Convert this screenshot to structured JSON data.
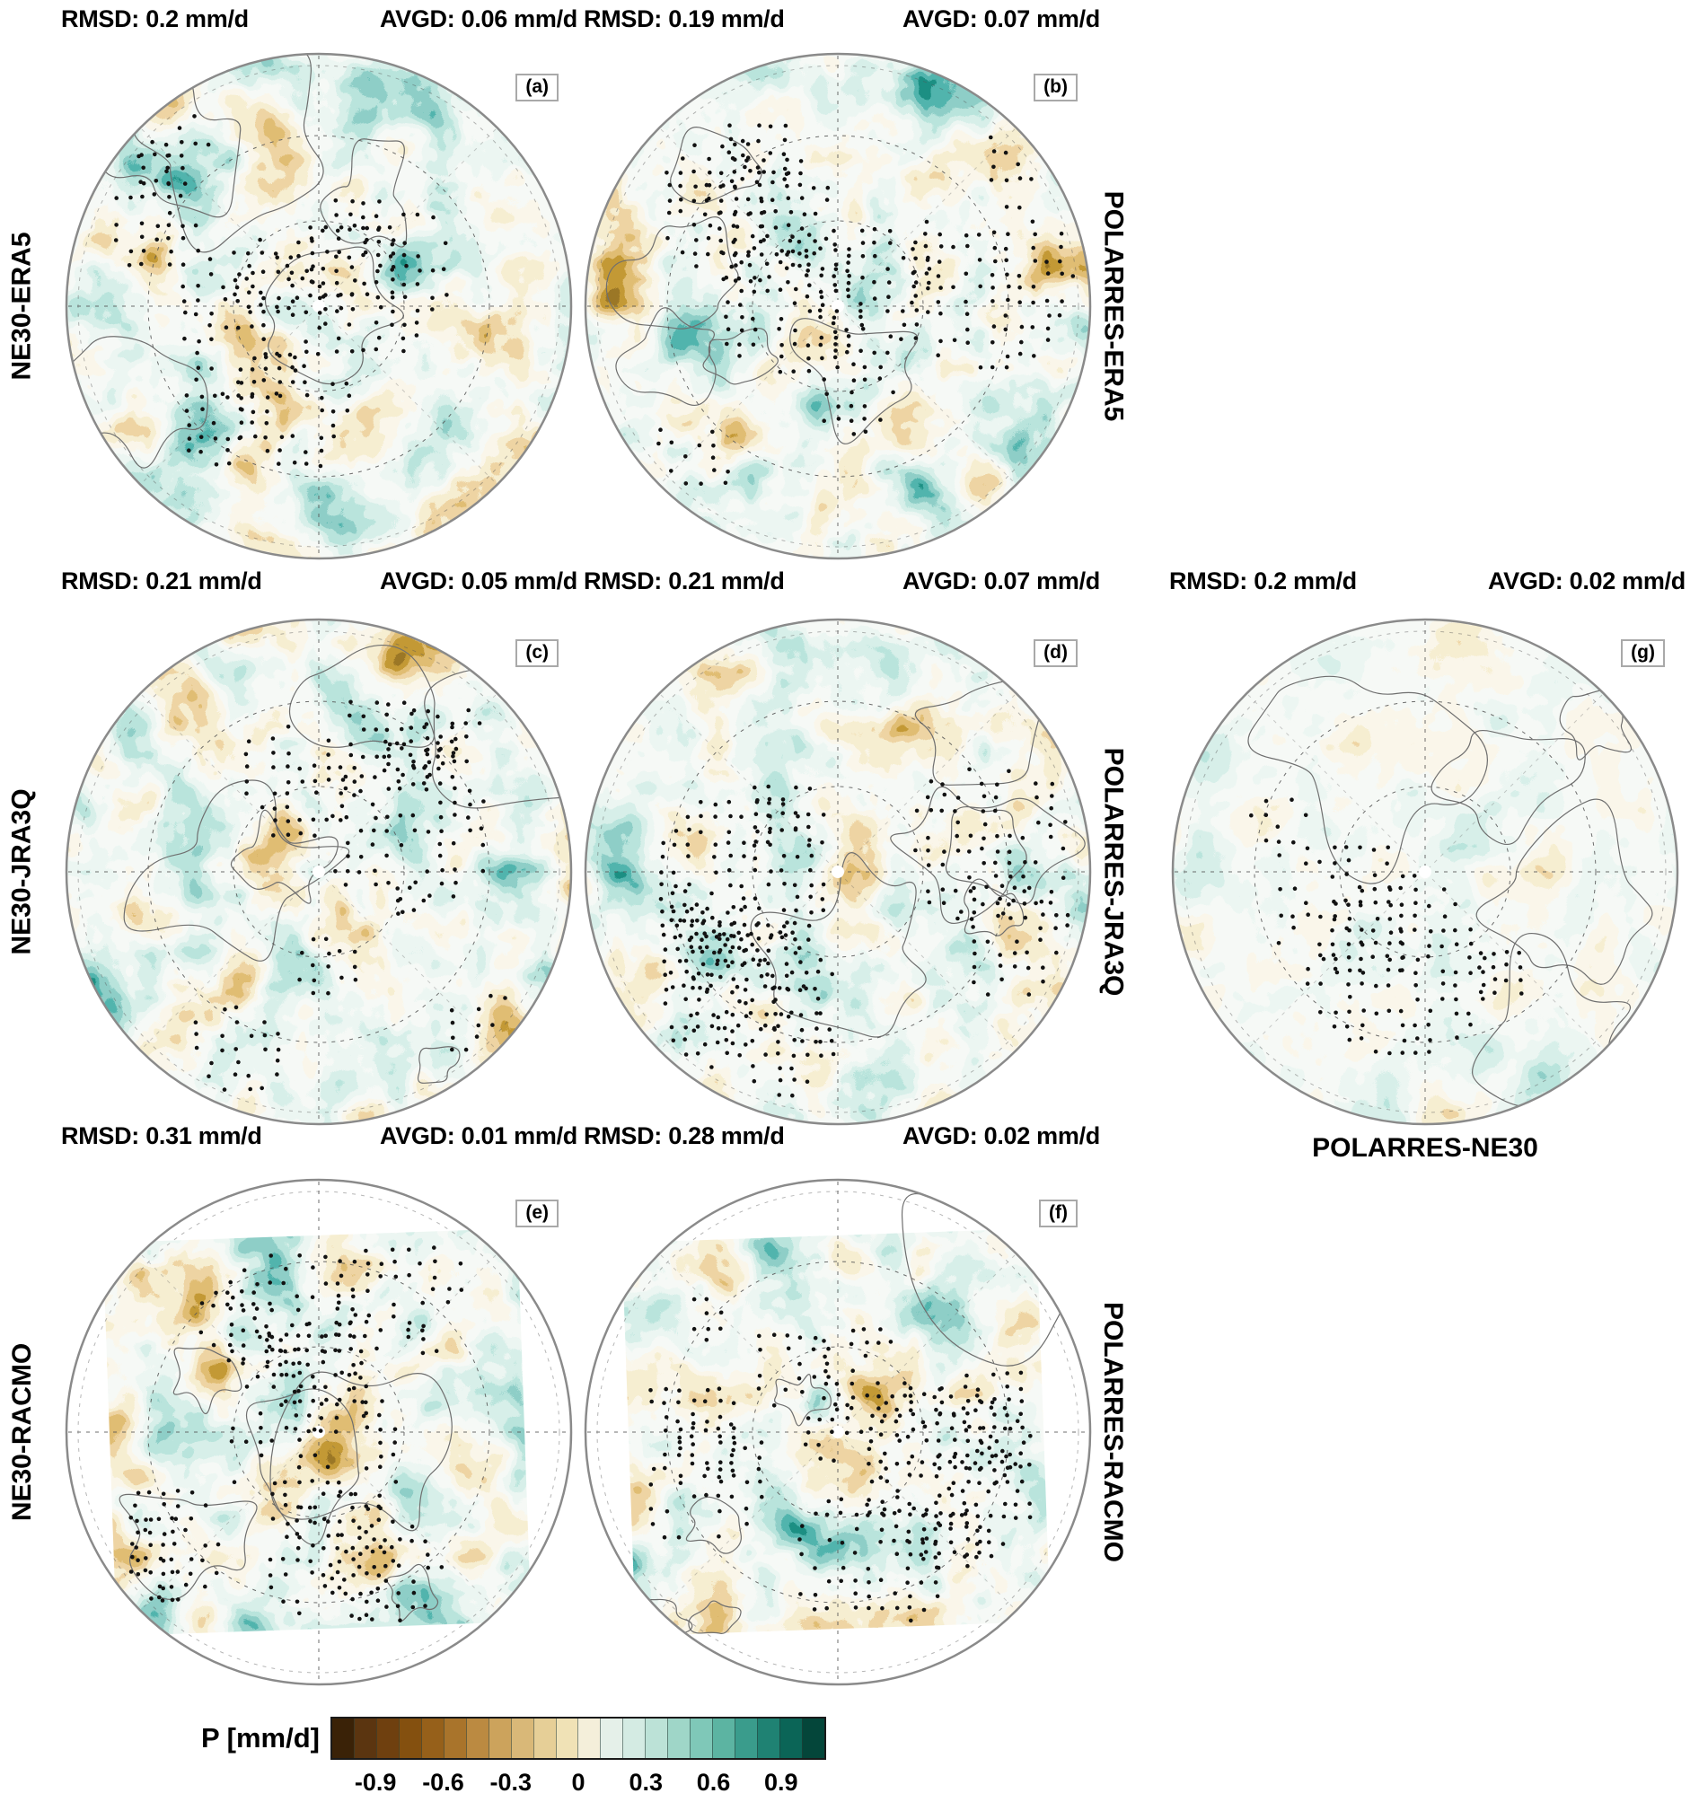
{
  "panels": [
    {
      "letter": "(a)",
      "rmsd": "RMSD: 0.2 mm/d",
      "avgd": "AVGD: 0.06 mm/d"
    },
    {
      "letter": "(b)",
      "rmsd": "RMSD: 0.19 mm/d",
      "avgd": "AVGD: 0.07 mm/d"
    },
    {
      "letter": "(c)",
      "rmsd": "RMSD: 0.21 mm/d",
      "avgd": "AVGD: 0.05 mm/d"
    },
    {
      "letter": "(d)",
      "rmsd": "RMSD: 0.21 mm/d",
      "avgd": "AVGD: 0.07 mm/d"
    },
    {
      "letter": "(g)",
      "rmsd": "RMSD: 0.2 mm/d",
      "avgd": "AVGD: 0.02 mm/d"
    },
    {
      "letter": "(e)",
      "rmsd": "RMSD: 0.31 mm/d",
      "avgd": "AVGD: 0.01 mm/d"
    },
    {
      "letter": "(f)",
      "rmsd": "RMSD: 0.28 mm/d",
      "avgd": "AVGD: 0.02 mm/d"
    }
  ],
  "labels": {
    "left": [
      "NE30-ERA5",
      "NE30-JRA3Q",
      "NE30-RACMO"
    ],
    "right": [
      "POLARRES-ERA5",
      "POLARRES-JRA3Q",
      "POLARRES-RACMO"
    ],
    "panel_g_bottom": "POLARRES-NE30"
  },
  "colorbar": {
    "label": "P [mm/d]",
    "tick_labels": [
      "-0.9",
      "-0.6",
      "-0.3",
      "0",
      "0.3",
      "0.6",
      "0.9"
    ],
    "tick_values": [
      -0.9,
      -0.6,
      -0.3,
      0,
      0.3,
      0.6,
      0.9
    ],
    "range": [
      -1.1,
      1.1
    ],
    "colors": [
      "#3a2207",
      "#5b3510",
      "#6f400f",
      "#84500f",
      "#96601a",
      "#a9742b",
      "#bb8a41",
      "#cca35c",
      "#d9b878",
      "#e6cf97",
      "#f0e2b6",
      "#f4efda",
      "#e5f0e9",
      "#d4ebe3",
      "#bce2d7",
      "#9fd6c8",
      "#7fc8b8",
      "#5cb4a2",
      "#3a9c8c",
      "#1f8273",
      "#0b6557",
      "#04463a"
    ]
  },
  "map_colors": {
    "negative_dark": "#543005",
    "negative": "#bf812d",
    "neutral": "#f4ecd3",
    "positive": "#7cc7b6",
    "positive_dark": "#03473b",
    "stipple": "#121212",
    "coastline": "#6f6f6f"
  },
  "chart_data": {
    "type": "heatmap",
    "subtype": "polar_stereographic_difference_maps",
    "variable": "P [mm/d]",
    "colormap": "discrete brown-teal diverging (BrBG-like), 22 bins",
    "colorbar_ticks": [
      -0.9,
      -0.6,
      -0.3,
      0,
      0.3,
      0.6,
      0.9
    ],
    "colorbar_range": [
      -1.1,
      1.1
    ],
    "has_stippling": true,
    "panels": [
      {
        "letter": "a",
        "comparison": "NE30-ERA5",
        "rmsd_mm_d": 0.2,
        "avgd_mm_d": 0.06
      },
      {
        "letter": "b",
        "comparison": "POLARRES-ERA5",
        "rmsd_mm_d": 0.19,
        "avgd_mm_d": 0.07
      },
      {
        "letter": "c",
        "comparison": "NE30-JRA3Q",
        "rmsd_mm_d": 0.21,
        "avgd_mm_d": 0.05
      },
      {
        "letter": "d",
        "comparison": "POLARRES-JRA3Q",
        "rmsd_mm_d": 0.21,
        "avgd_mm_d": 0.07
      },
      {
        "letter": "e",
        "comparison": "NE30-RACMO",
        "rmsd_mm_d": 0.31,
        "avgd_mm_d": 0.01
      },
      {
        "letter": "f",
        "comparison": "POLARRES-RACMO",
        "rmsd_mm_d": 0.28,
        "avgd_mm_d": 0.02
      },
      {
        "letter": "g",
        "comparison": "POLARRES-NE30",
        "rmsd_mm_d": 0.2,
        "avgd_mm_d": 0.02
      }
    ]
  }
}
